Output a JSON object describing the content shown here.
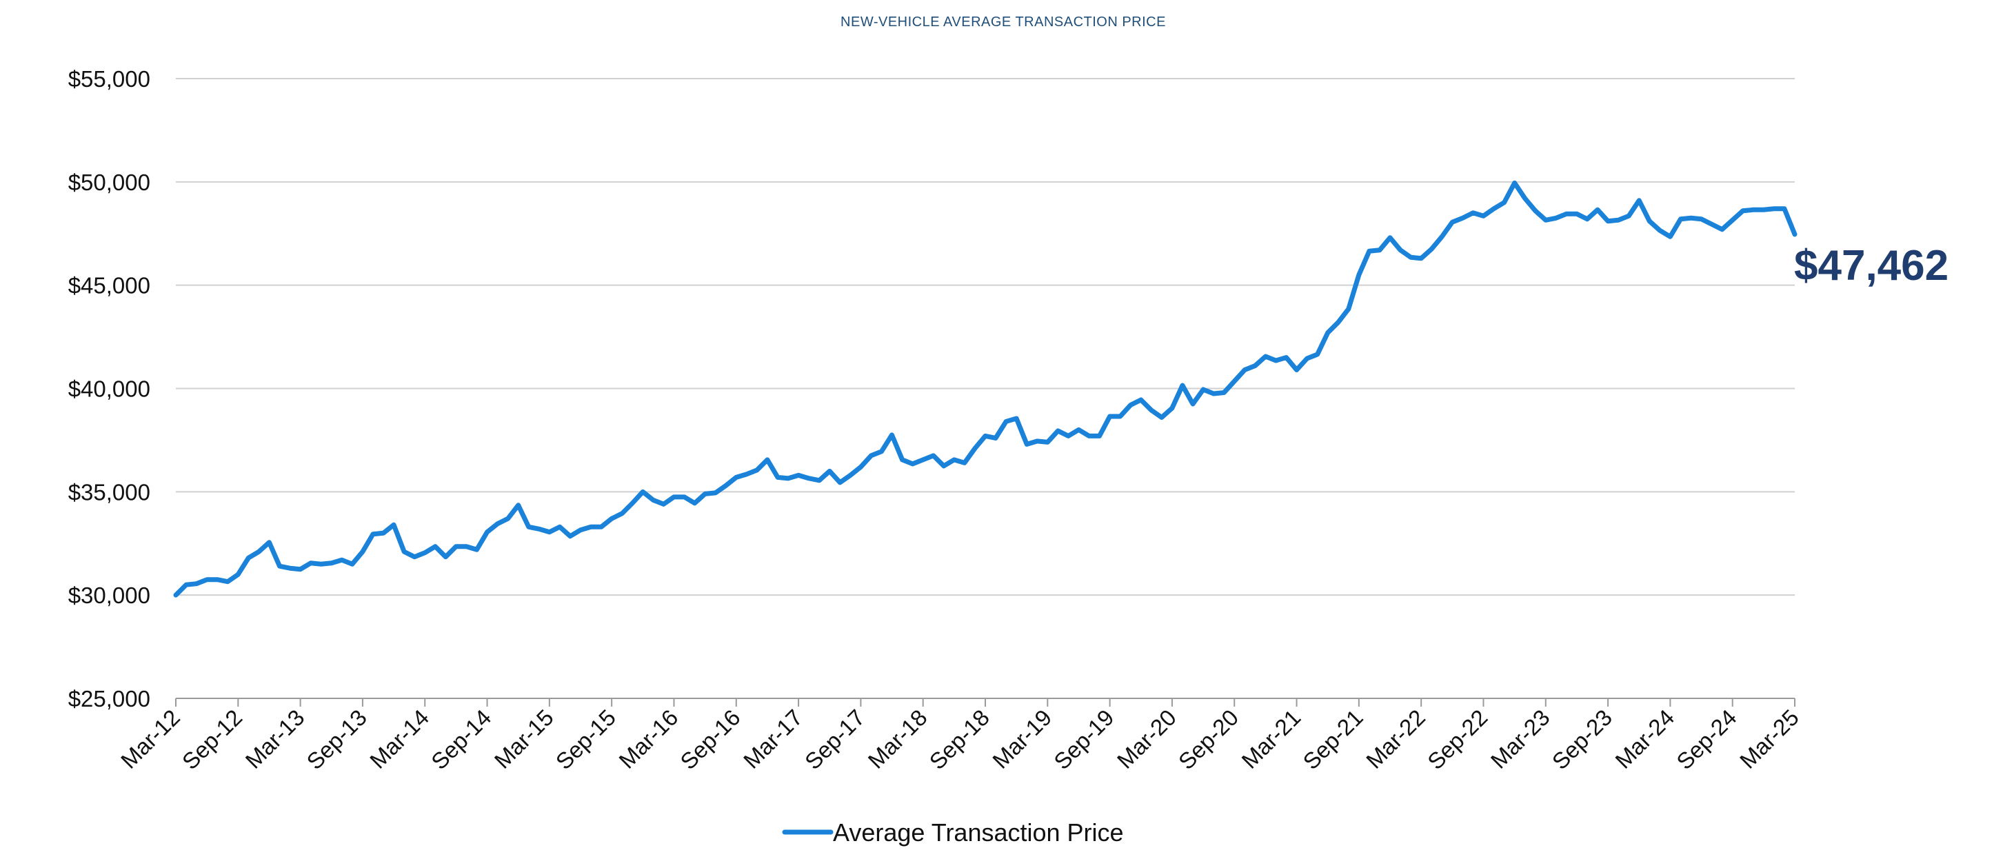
{
  "chart_data": {
    "type": "line",
    "title": "NEW-VEHICLE AVERAGE TRANSACTION PRICE",
    "xlabel": "",
    "ylabel": "",
    "ylim": [
      25000,
      55000
    ],
    "yticks": [
      25000,
      30000,
      35000,
      40000,
      45000,
      50000,
      55000
    ],
    "ytick_labels": [
      "$25,000",
      "$30,000",
      "$35,000",
      "$40,000",
      "$45,000",
      "$50,000",
      "$55,000"
    ],
    "xtick_labels": [
      "Mar-12",
      "Sep-12",
      "Mar-13",
      "Sep-13",
      "Mar-14",
      "Sep-14",
      "Mar-15",
      "Sep-15",
      "Mar-16",
      "Sep-16",
      "Mar-17",
      "Sep-17",
      "Mar-18",
      "Sep-18",
      "Mar-19",
      "Sep-19",
      "Mar-20",
      "Sep-20",
      "Mar-21",
      "Sep-21",
      "Mar-22",
      "Sep-22",
      "Mar-23",
      "Sep-23",
      "Mar-24",
      "Sep-24",
      "Mar-25"
    ],
    "grid": true,
    "legend_position": "bottom",
    "end_label": "$47,462",
    "colors": {
      "line": "#1a82d8",
      "title": "#1f4e79",
      "end_label": "#1f3d6e",
      "grid": "#d0d0d0",
      "axis": "#9a9a9a"
    },
    "series": [
      {
        "name": "Average Transaction Price",
        "values": [
          30000,
          30500,
          30550,
          30750,
          30750,
          30650,
          31000,
          31800,
          32100,
          32550,
          31400,
          31300,
          31250,
          31550,
          31500,
          31550,
          31700,
          31500,
          32100,
          32950,
          33000,
          33400,
          32100,
          31850,
          32050,
          32350,
          31850,
          32350,
          32350,
          32200,
          33050,
          33450,
          33700,
          34350,
          33300,
          33200,
          33050,
          33300,
          32850,
          33150,
          33300,
          33300,
          33700,
          33950,
          34450,
          35000,
          34600,
          34400,
          34750,
          34750,
          34450,
          34900,
          34950,
          35300,
          35700,
          35850,
          36050,
          36550,
          35700,
          35650,
          35800,
          35650,
          35550,
          36000,
          35450,
          35800,
          36200,
          36750,
          36950,
          37750,
          36550,
          36350,
          36550,
          36750,
          36250,
          36550,
          36400,
          37100,
          37700,
          37600,
          38400,
          38550,
          37300,
          37450,
          37400,
          37950,
          37700,
          38000,
          37700,
          37700,
          38650,
          38650,
          39200,
          39450,
          38950,
          38600,
          39050,
          40150,
          39250,
          39950,
          39750,
          39800,
          40350,
          40900,
          41100,
          41550,
          41350,
          41500,
          40900,
          41450,
          41650,
          42700,
          43200,
          43850,
          45500,
          46650,
          46700,
          47300,
          46700,
          46350,
          46300,
          46750,
          47350,
          48050,
          48250,
          48500,
          48350,
          48700,
          49000,
          49950,
          49200,
          48600,
          48150,
          48250,
          48450,
          48450,
          48200,
          48650,
          48100,
          48150,
          48350,
          49100,
          48100,
          47650,
          47350,
          48200,
          48250,
          48200,
          47950,
          47700,
          48150,
          48600,
          48650,
          48650,
          48700,
          48700,
          47462
        ]
      }
    ]
  },
  "legend": {
    "label": "Average Transaction Price"
  }
}
